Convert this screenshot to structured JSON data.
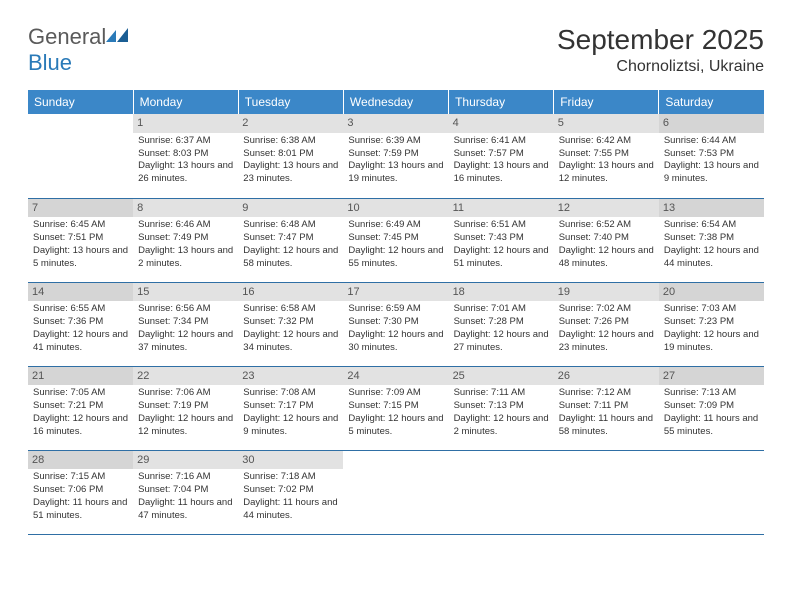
{
  "logo": {
    "word1": "General",
    "word2": "Blue"
  },
  "title": "September 2025",
  "location": "Chornoliztsi, Ukraine",
  "weekdays": [
    "Sunday",
    "Monday",
    "Tuesday",
    "Wednesday",
    "Thursday",
    "Friday",
    "Saturday"
  ],
  "colors": {
    "header_bg": "#3b87c8",
    "header_text": "#ffffff",
    "daynum_bg": "#e2e2e2",
    "daynum_weekend_bg": "#d5d5d5",
    "row_border": "#2f6fa5",
    "text": "#333333",
    "logo_gray": "#5a5a5a",
    "logo_blue": "#2a7ab8"
  },
  "weeks": [
    [
      {
        "n": "",
        "sr": "",
        "ss": "",
        "dl": ""
      },
      {
        "n": "1",
        "sr": "Sunrise: 6:37 AM",
        "ss": "Sunset: 8:03 PM",
        "dl": "Daylight: 13 hours and 26 minutes."
      },
      {
        "n": "2",
        "sr": "Sunrise: 6:38 AM",
        "ss": "Sunset: 8:01 PM",
        "dl": "Daylight: 13 hours and 23 minutes."
      },
      {
        "n": "3",
        "sr": "Sunrise: 6:39 AM",
        "ss": "Sunset: 7:59 PM",
        "dl": "Daylight: 13 hours and 19 minutes."
      },
      {
        "n": "4",
        "sr": "Sunrise: 6:41 AM",
        "ss": "Sunset: 7:57 PM",
        "dl": "Daylight: 13 hours and 16 minutes."
      },
      {
        "n": "5",
        "sr": "Sunrise: 6:42 AM",
        "ss": "Sunset: 7:55 PM",
        "dl": "Daylight: 13 hours and 12 minutes."
      },
      {
        "n": "6",
        "sr": "Sunrise: 6:44 AM",
        "ss": "Sunset: 7:53 PM",
        "dl": "Daylight: 13 hours and 9 minutes."
      }
    ],
    [
      {
        "n": "7",
        "sr": "Sunrise: 6:45 AM",
        "ss": "Sunset: 7:51 PM",
        "dl": "Daylight: 13 hours and 5 minutes."
      },
      {
        "n": "8",
        "sr": "Sunrise: 6:46 AM",
        "ss": "Sunset: 7:49 PM",
        "dl": "Daylight: 13 hours and 2 minutes."
      },
      {
        "n": "9",
        "sr": "Sunrise: 6:48 AM",
        "ss": "Sunset: 7:47 PM",
        "dl": "Daylight: 12 hours and 58 minutes."
      },
      {
        "n": "10",
        "sr": "Sunrise: 6:49 AM",
        "ss": "Sunset: 7:45 PM",
        "dl": "Daylight: 12 hours and 55 minutes."
      },
      {
        "n": "11",
        "sr": "Sunrise: 6:51 AM",
        "ss": "Sunset: 7:43 PM",
        "dl": "Daylight: 12 hours and 51 minutes."
      },
      {
        "n": "12",
        "sr": "Sunrise: 6:52 AM",
        "ss": "Sunset: 7:40 PM",
        "dl": "Daylight: 12 hours and 48 minutes."
      },
      {
        "n": "13",
        "sr": "Sunrise: 6:54 AM",
        "ss": "Sunset: 7:38 PM",
        "dl": "Daylight: 12 hours and 44 minutes."
      }
    ],
    [
      {
        "n": "14",
        "sr": "Sunrise: 6:55 AM",
        "ss": "Sunset: 7:36 PM",
        "dl": "Daylight: 12 hours and 41 minutes."
      },
      {
        "n": "15",
        "sr": "Sunrise: 6:56 AM",
        "ss": "Sunset: 7:34 PM",
        "dl": "Daylight: 12 hours and 37 minutes."
      },
      {
        "n": "16",
        "sr": "Sunrise: 6:58 AM",
        "ss": "Sunset: 7:32 PM",
        "dl": "Daylight: 12 hours and 34 minutes."
      },
      {
        "n": "17",
        "sr": "Sunrise: 6:59 AM",
        "ss": "Sunset: 7:30 PM",
        "dl": "Daylight: 12 hours and 30 minutes."
      },
      {
        "n": "18",
        "sr": "Sunrise: 7:01 AM",
        "ss": "Sunset: 7:28 PM",
        "dl": "Daylight: 12 hours and 27 minutes."
      },
      {
        "n": "19",
        "sr": "Sunrise: 7:02 AM",
        "ss": "Sunset: 7:26 PM",
        "dl": "Daylight: 12 hours and 23 minutes."
      },
      {
        "n": "20",
        "sr": "Sunrise: 7:03 AM",
        "ss": "Sunset: 7:23 PM",
        "dl": "Daylight: 12 hours and 19 minutes."
      }
    ],
    [
      {
        "n": "21",
        "sr": "Sunrise: 7:05 AM",
        "ss": "Sunset: 7:21 PM",
        "dl": "Daylight: 12 hours and 16 minutes."
      },
      {
        "n": "22",
        "sr": "Sunrise: 7:06 AM",
        "ss": "Sunset: 7:19 PM",
        "dl": "Daylight: 12 hours and 12 minutes."
      },
      {
        "n": "23",
        "sr": "Sunrise: 7:08 AM",
        "ss": "Sunset: 7:17 PM",
        "dl": "Daylight: 12 hours and 9 minutes."
      },
      {
        "n": "24",
        "sr": "Sunrise: 7:09 AM",
        "ss": "Sunset: 7:15 PM",
        "dl": "Daylight: 12 hours and 5 minutes."
      },
      {
        "n": "25",
        "sr": "Sunrise: 7:11 AM",
        "ss": "Sunset: 7:13 PM",
        "dl": "Daylight: 12 hours and 2 minutes."
      },
      {
        "n": "26",
        "sr": "Sunrise: 7:12 AM",
        "ss": "Sunset: 7:11 PM",
        "dl": "Daylight: 11 hours and 58 minutes."
      },
      {
        "n": "27",
        "sr": "Sunrise: 7:13 AM",
        "ss": "Sunset: 7:09 PM",
        "dl": "Daylight: 11 hours and 55 minutes."
      }
    ],
    [
      {
        "n": "28",
        "sr": "Sunrise: 7:15 AM",
        "ss": "Sunset: 7:06 PM",
        "dl": "Daylight: 11 hours and 51 minutes."
      },
      {
        "n": "29",
        "sr": "Sunrise: 7:16 AM",
        "ss": "Sunset: 7:04 PM",
        "dl": "Daylight: 11 hours and 47 minutes."
      },
      {
        "n": "30",
        "sr": "Sunrise: 7:18 AM",
        "ss": "Sunset: 7:02 PM",
        "dl": "Daylight: 11 hours and 44 minutes."
      },
      {
        "n": "",
        "sr": "",
        "ss": "",
        "dl": ""
      },
      {
        "n": "",
        "sr": "",
        "ss": "",
        "dl": ""
      },
      {
        "n": "",
        "sr": "",
        "ss": "",
        "dl": ""
      },
      {
        "n": "",
        "sr": "",
        "ss": "",
        "dl": ""
      }
    ]
  ]
}
